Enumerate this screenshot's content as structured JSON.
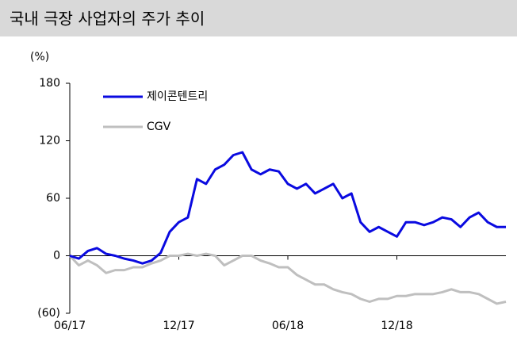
{
  "chart_data": {
    "type": "line",
    "title": "국내 극장 사업자의 주가 추이",
    "y_label": "(%)",
    "x": [
      0,
      0.5,
      1,
      1.5,
      2,
      2.5,
      3,
      3.5,
      4,
      4.5,
      5,
      5.5,
      6,
      6.5,
      7,
      7.5,
      8,
      8.5,
      9,
      9.5,
      10,
      10.5,
      11,
      11.5,
      12,
      12.5,
      13,
      13.5,
      14,
      14.5,
      15,
      15.5,
      16,
      16.5,
      17,
      17.5,
      18,
      18.5,
      19,
      19.5,
      20,
      20.5,
      21,
      21.5,
      22,
      22.5,
      23,
      23.5,
      24
    ],
    "series": [
      {
        "name": "제이콘텐트리",
        "color": "#0a0ae0",
        "values": [
          0,
          -3,
          5,
          8,
          2,
          0,
          -3,
          -5,
          -8,
          -5,
          3,
          25,
          35,
          40,
          80,
          75,
          90,
          95,
          105,
          108,
          90,
          85,
          90,
          88,
          75,
          70,
          75,
          65,
          70,
          75,
          60,
          65,
          35,
          25,
          30,
          25,
          20,
          35,
          35,
          32,
          35,
          40,
          38,
          30,
          40,
          45,
          35,
          30,
          30
        ]
      },
      {
        "name": "CGV",
        "color": "#bfbfbf",
        "values": [
          0,
          -10,
          -5,
          -10,
          -18,
          -15,
          -15,
          -12,
          -12,
          -8,
          -5,
          0,
          0,
          2,
          0,
          2,
          0,
          -10,
          -5,
          0,
          0,
          -5,
          -8,
          -12,
          -12,
          -20,
          -25,
          -30,
          -30,
          -35,
          -38,
          -40,
          -45,
          -48,
          -45,
          -45,
          -42,
          -42,
          -40,
          -40,
          -40,
          -38,
          -35,
          -38,
          -38,
          -40,
          -45,
          -50,
          -48
        ]
      }
    ],
    "xlim": [
      0,
      24
    ],
    "xticks": [
      {
        "value": 0,
        "label": "06/17"
      },
      {
        "value": 6,
        "label": "12/17"
      },
      {
        "value": 12,
        "label": "06/18"
      },
      {
        "value": 18,
        "label": "12/18"
      }
    ],
    "ylim": [
      -60,
      180
    ],
    "yticks": [
      180,
      120,
      60,
      0,
      {
        "value": -60,
        "label": "(60)"
      }
    ],
    "grid": false
  }
}
